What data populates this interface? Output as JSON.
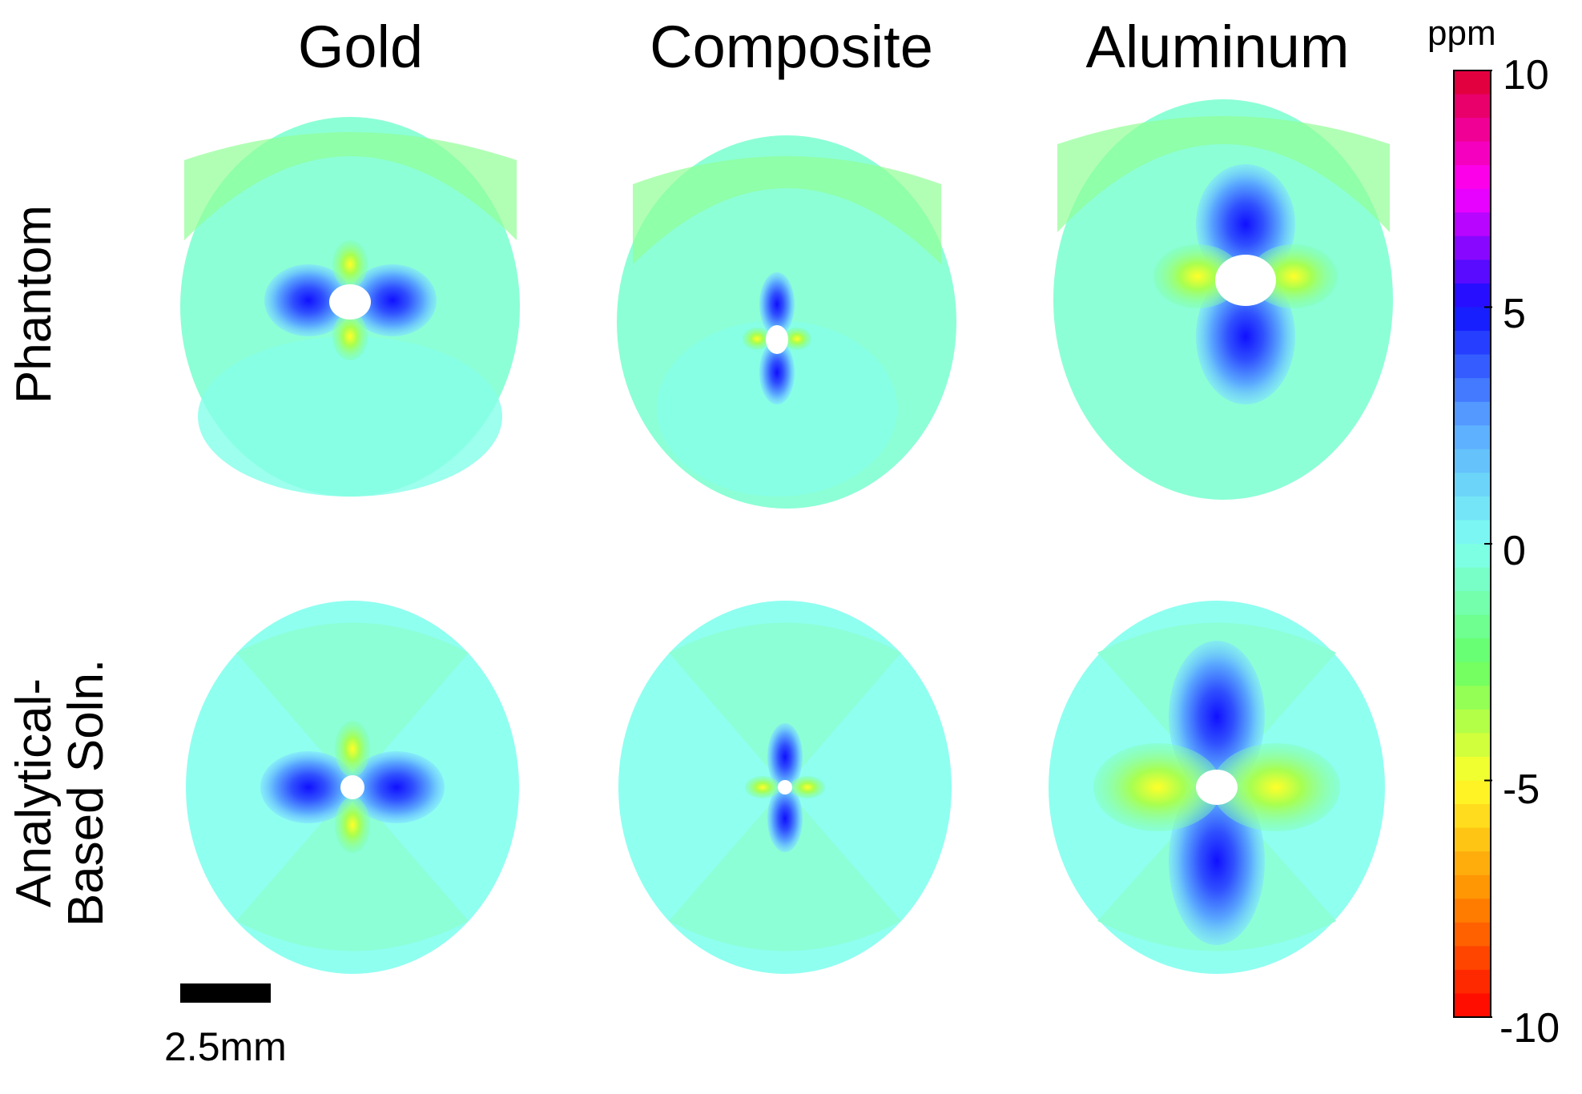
{
  "columns": [
    "Gold",
    "Composite",
    "Aluminum"
  ],
  "rows": [
    "Phantom",
    "Analytical-\nBased Soln."
  ],
  "colorbar": {
    "unit": "ppm",
    "ticks": [
      "10",
      "5",
      "0",
      "-5",
      "-10"
    ],
    "range": [
      -10,
      10
    ],
    "colormap": [
      "#e0002a",
      "#ff00ff",
      "#1010ff",
      "#5aa8ff",
      "#7ffff2",
      "#66ff66",
      "#ffff2a",
      "#ff8a00",
      "#ff0000"
    ],
    "steps": 40
  },
  "scalebar": {
    "label": "2.5mm"
  },
  "colors": {
    "background": "#ffffff",
    "hole": "#ffffff"
  }
}
